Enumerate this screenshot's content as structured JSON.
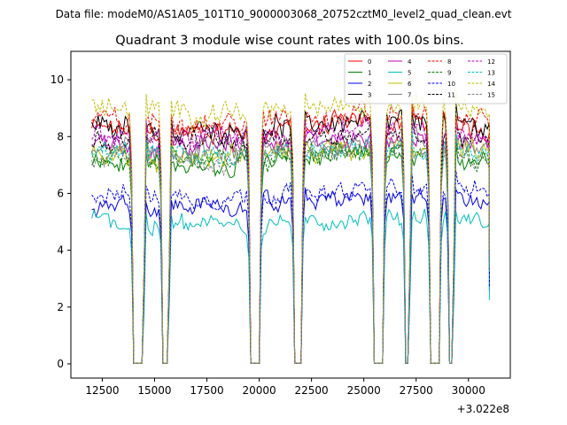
{
  "chart_data": {
    "type": "line",
    "suptitle": "Data file: modeM0/AS1A05_101T10_9000003068_20752cztM0_level2_quad_clean.evt",
    "title": "Quadrant 3 module wise count rates with 100.0s bins.",
    "xlabel": "",
    "ylabel": "",
    "x_offset_label": "+3.022e8",
    "xlim": [
      11000,
      32000
    ],
    "ylim": [
      -0.5,
      11
    ],
    "xticks": [
      12500,
      15000,
      17500,
      20000,
      22500,
      25000,
      27500,
      30000
    ],
    "yticks": [
      0,
      2,
      4,
      6,
      8,
      10
    ],
    "legend_loc": "upper right",
    "x_start": 12000,
    "x_end": 31000,
    "x_step": 100,
    "gaps": [
      [
        14000,
        14450
      ],
      [
        15400,
        15650
      ],
      [
        19600,
        20000
      ],
      [
        21700,
        22000
      ],
      [
        25500,
        25900
      ],
      [
        27000,
        27150
      ],
      [
        28200,
        28600
      ],
      [
        29100,
        29250
      ]
    ],
    "series": [
      {
        "name": "0",
        "color": "#ff0000",
        "dash": "solid",
        "level": 8.3
      },
      {
        "name": "1",
        "color": "#008000",
        "dash": "solid",
        "level": 7.2
      },
      {
        "name": "2",
        "color": "#0000ff",
        "dash": "solid",
        "level": 5.7
      },
      {
        "name": "3",
        "color": "#000000",
        "dash": "solid",
        "level": 8.4
      },
      {
        "name": "4",
        "color": "#bf00bf",
        "dash": "solid",
        "level": 7.8
      },
      {
        "name": "5",
        "color": "#00bfbf",
        "dash": "solid",
        "level": 5.0
      },
      {
        "name": "6",
        "color": "#bfbf00",
        "dash": "solid",
        "level": 7.4
      },
      {
        "name": "7",
        "color": "#808080",
        "dash": "solid",
        "level": 7.6
      },
      {
        "name": "8",
        "color": "#ff0000",
        "dash": "dashed",
        "level": 8.6
      },
      {
        "name": "9",
        "color": "#008000",
        "dash": "dashed",
        "level": 7.3
      },
      {
        "name": "10",
        "color": "#0000ff",
        "dash": "dashed",
        "level": 6.0
      },
      {
        "name": "11",
        "color": "#000000",
        "dash": "dashed",
        "level": 8.0
      },
      {
        "name": "12",
        "color": "#bf00bf",
        "dash": "dashed",
        "level": 8.1
      },
      {
        "name": "13",
        "color": "#00bfbf",
        "dash": "dashed",
        "level": 7.5
      },
      {
        "name": "14",
        "color": "#bfbf00",
        "dash": "dashed",
        "level": 9.0
      },
      {
        "name": "15",
        "color": "#808080",
        "dash": "dashed",
        "level": 7.3
      }
    ]
  }
}
